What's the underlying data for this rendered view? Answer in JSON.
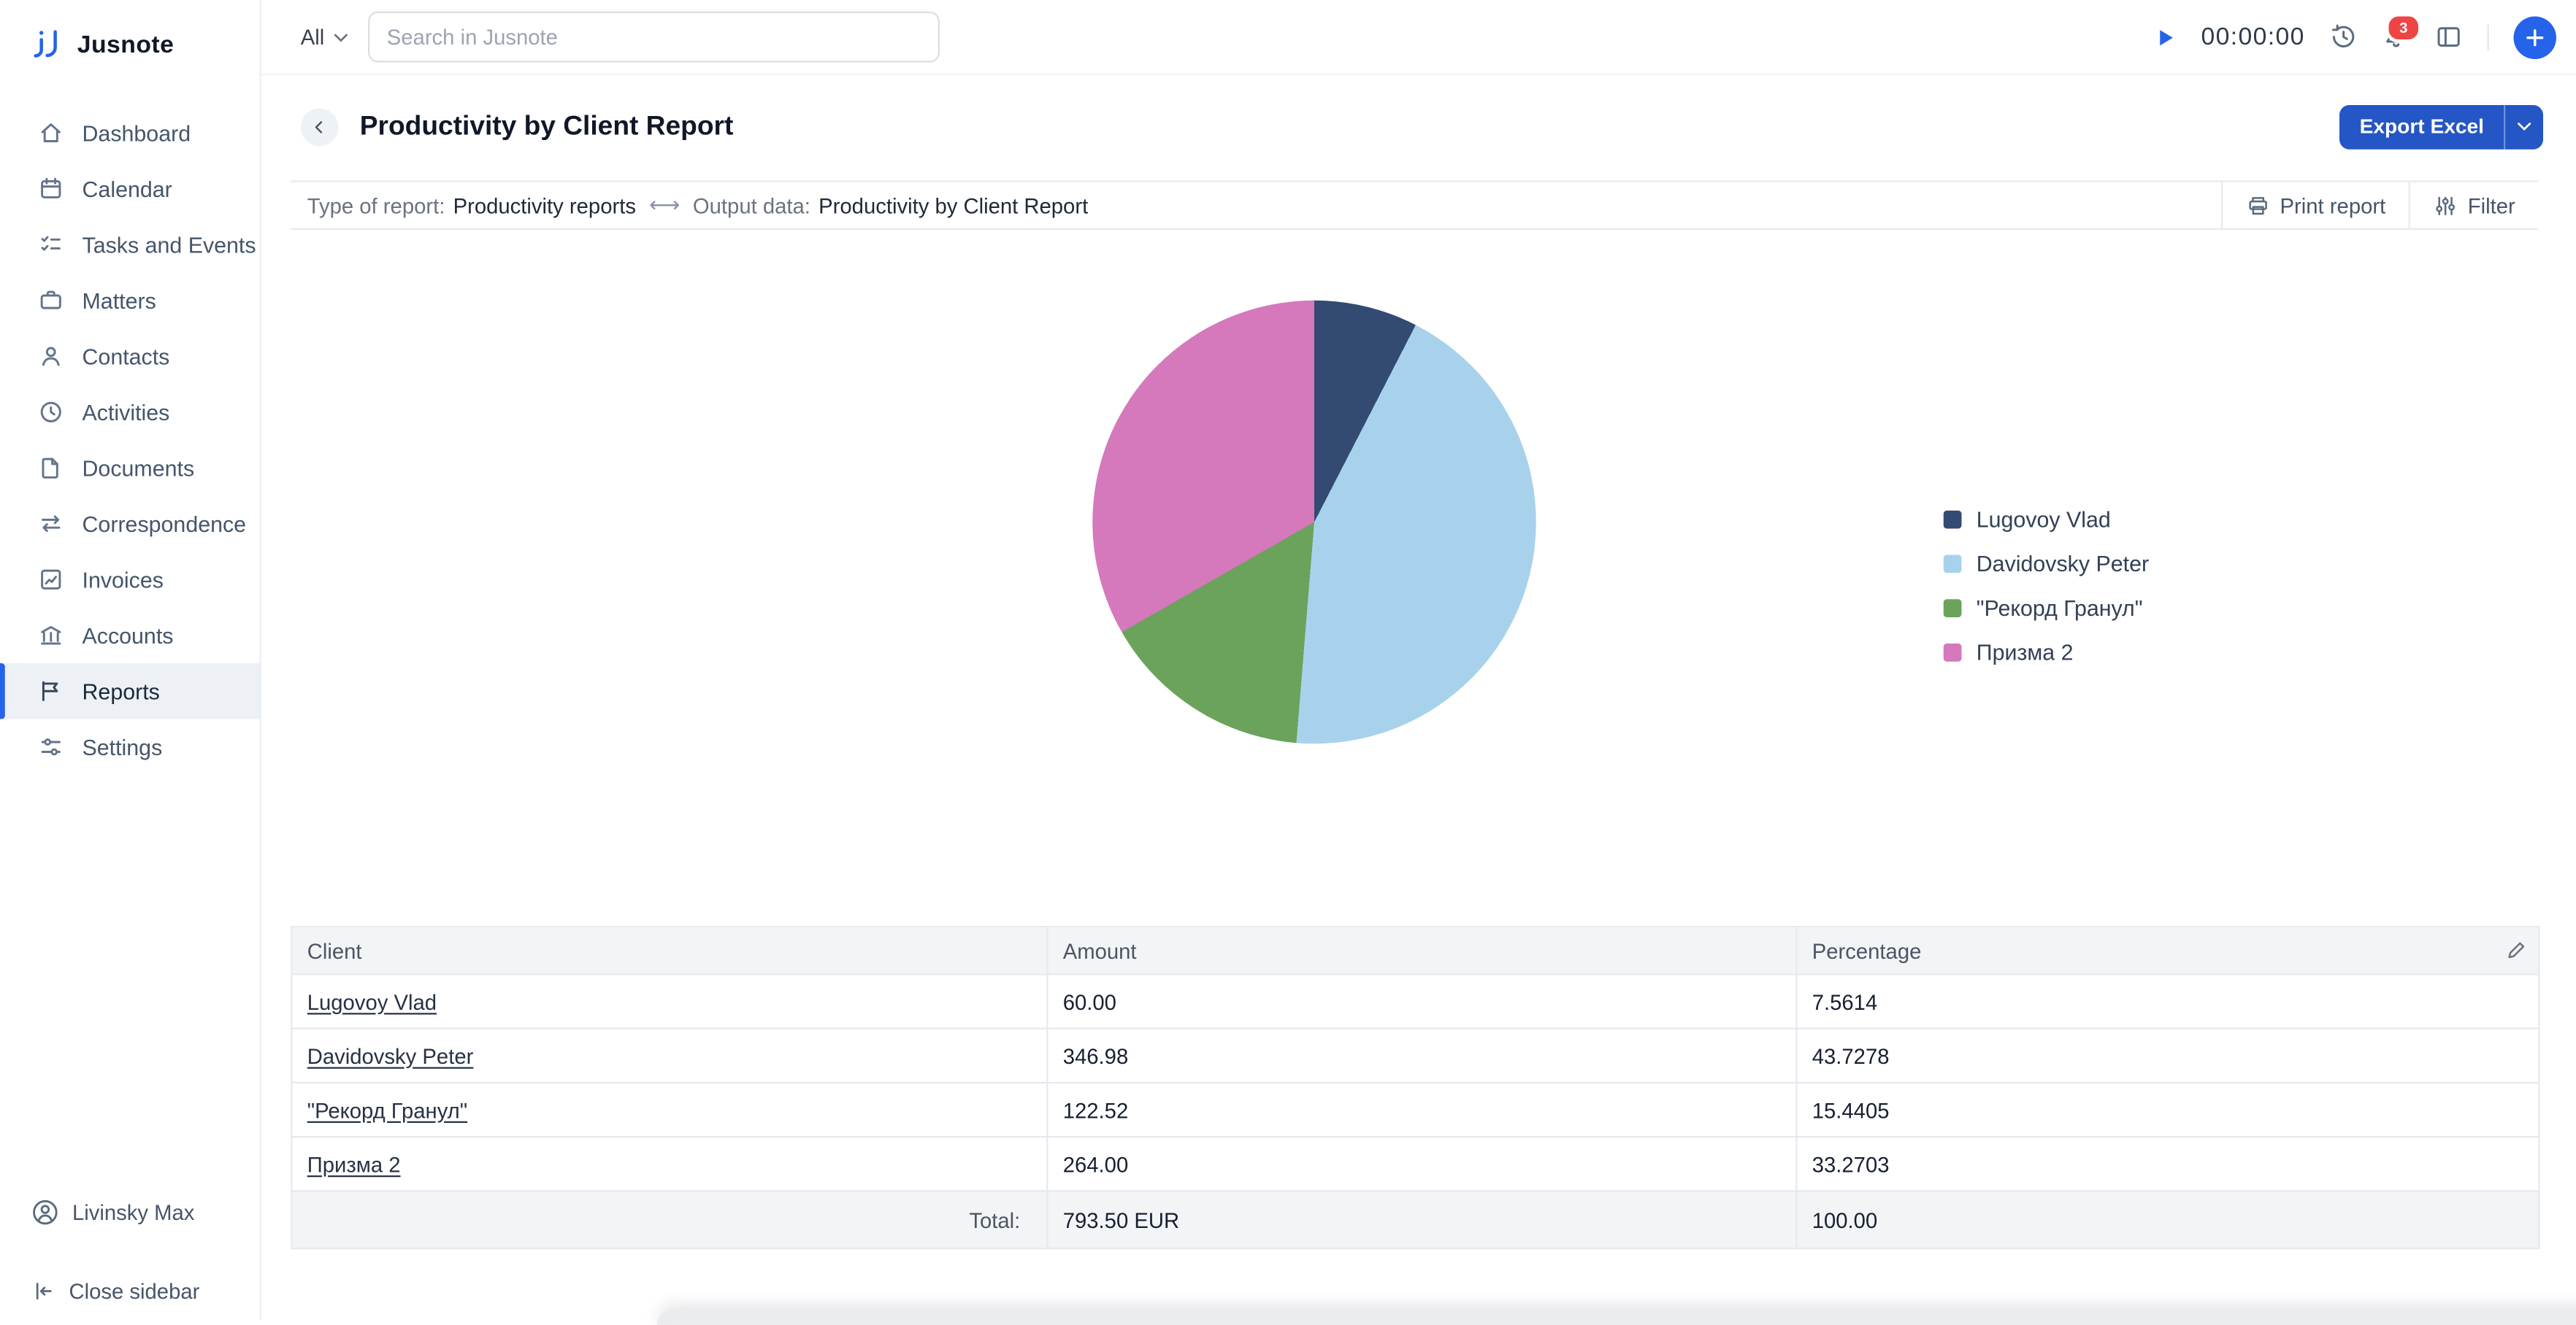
{
  "brand": {
    "name": "Jusnote"
  },
  "topbar": {
    "scope_label": "All",
    "search_placeholder": "Search in Jusnote",
    "timer": "00:00:00",
    "notification_count": "3"
  },
  "sidebar": {
    "items": [
      {
        "label": "Dashboard",
        "icon": "dashboard"
      },
      {
        "label": "Calendar",
        "icon": "calendar"
      },
      {
        "label": "Tasks and Events",
        "icon": "tasks"
      },
      {
        "label": "Matters",
        "icon": "matters"
      },
      {
        "label": "Contacts",
        "icon": "contacts"
      },
      {
        "label": "Activities",
        "icon": "activities"
      },
      {
        "label": "Documents",
        "icon": "documents"
      },
      {
        "label": "Correspondence",
        "icon": "correspondence"
      },
      {
        "label": "Invoices",
        "icon": "invoices"
      },
      {
        "label": "Accounts",
        "icon": "accounts"
      },
      {
        "label": "Reports",
        "icon": "reports"
      },
      {
        "label": "Settings",
        "icon": "settings"
      }
    ],
    "active_item": "Reports",
    "user_name": "Livinsky Max",
    "close_label": "Close sidebar"
  },
  "page": {
    "title": "Productivity by Client Report",
    "export_button": "Export Excel"
  },
  "meta": {
    "type_label": "Type of report:",
    "type_value": "Productivity reports",
    "separator": "⟷",
    "output_label": "Output data:",
    "output_value": "Productivity by Client Report",
    "print_label": "Print report",
    "filter_label": "Filter"
  },
  "chart_data": {
    "type": "pie",
    "labels": [
      "Lugovoy Vlad",
      "Davidovsky Peter",
      "\"Рекорд Гранул\"",
      "Призма 2"
    ],
    "values": [
      7.5614,
      43.7278,
      15.4405,
      33.2703
    ],
    "amounts": [
      60,
      346.98,
      122.52,
      264
    ],
    "colors": [
      "#334a72",
      "#a8d2ec",
      "#6ba35c",
      "#d678bc"
    ],
    "total_amount": 793.5,
    "currency": "EUR",
    "legend_position": "right",
    "start_angle_deg": 0
  },
  "table": {
    "columns": [
      "Client",
      "Amount",
      "Percentage"
    ],
    "rows": [
      {
        "client": "Lugovoy Vlad",
        "amount": "60.00",
        "percentage": "7.5614"
      },
      {
        "client": "Davidovsky Peter",
        "amount": "346.98",
        "percentage": "43.7278"
      },
      {
        "client": "\"Рекорд Гранул\"",
        "amount": "122.52",
        "percentage": "15.4405"
      },
      {
        "client": "Призма 2",
        "amount": "264.00",
        "percentage": "33.2703"
      }
    ],
    "total_label": "Total:",
    "total_amount": "793.50 EUR",
    "total_percentage": "100.00"
  }
}
